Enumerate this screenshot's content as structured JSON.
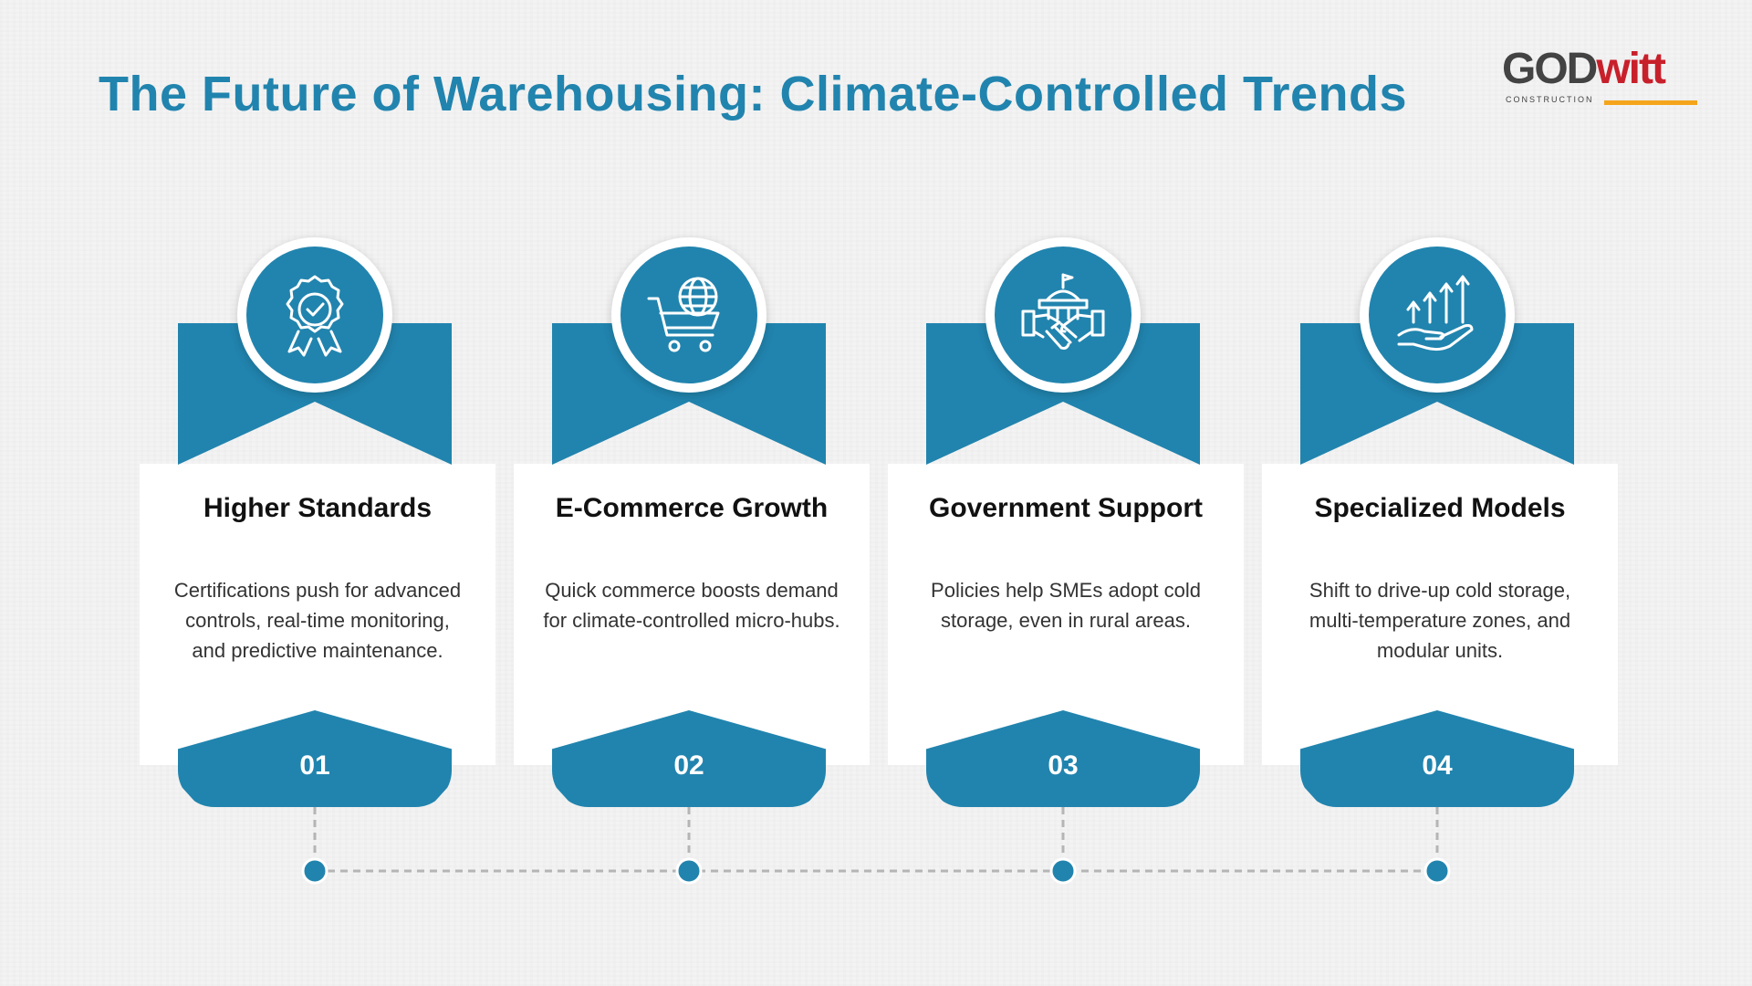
{
  "title": "The Future of Warehousing: Climate-Controlled Trends",
  "logo": {
    "main_dark": "GOD",
    "main_red": "witt",
    "sub": "CONSTRUCTION"
  },
  "colors": {
    "primary": "#2184ae",
    "logo_red": "#c8202b",
    "logo_orange": "#f5a51c"
  },
  "cards": [
    {
      "icon": "award-ribbon-icon",
      "title": "Higher Standards",
      "text": "Certifications push for advanced controls, real-time monitoring, and predictive maintenance.",
      "number": "01"
    },
    {
      "icon": "shopping-cart-globe-icon",
      "title": "E-Commerce Growth",
      "text": "Quick commerce boosts demand for climate-controlled micro-hubs.",
      "number": "02"
    },
    {
      "icon": "government-handshake-icon",
      "title": "Government Support",
      "text": "Policies help SMEs adopt cold storage, even in rural areas.",
      "number": "03"
    },
    {
      "icon": "hand-growth-arrows-icon",
      "title": "Specialized Models",
      "text": "Shift to drive-up cold storage, multi-temperature zones, and modular units.",
      "number": "04"
    }
  ]
}
